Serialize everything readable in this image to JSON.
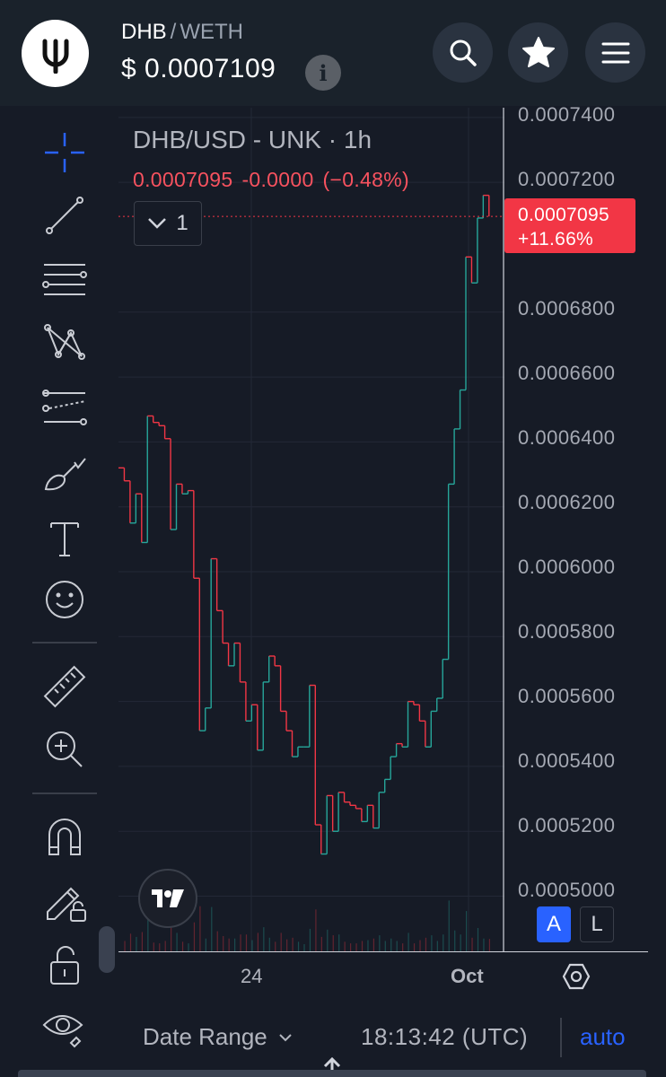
{
  "header": {
    "pair_base": "DHB",
    "pair_sep": "/",
    "pair_quote": "WETH",
    "price": "$ 0.0007109",
    "info_label": "i"
  },
  "chart": {
    "title": "DHB/USD - UNK · 1h",
    "last_value": "0.0007095",
    "change_abs": "-0.0000",
    "change_pct": "(−0.48%)",
    "collapse_count": "1",
    "price_tag_value": "0.0007095",
    "price_tag_change": "+11.66%",
    "scale_auto_label": "A",
    "scale_log_label": "L"
  },
  "footer": {
    "date_range_label": "Date Range",
    "clock": "18:13:42 (UTC)",
    "auto_label": "auto"
  },
  "colors": {
    "up": "#26a69a",
    "down": "#f23645",
    "accent": "#2962ff",
    "background": "#161b26"
  },
  "chart_data": {
    "type": "candlestick",
    "y_ticks": [
      "0.0007400",
      "0.0007200",
      "0.0006800",
      "0.0006600",
      "0.0006400",
      "0.0006200",
      "0.0006000",
      "0.0005800",
      "0.0005600",
      "0.0005400",
      "0.0005200",
      "0.0005000"
    ],
    "x_ticks": [
      "24",
      "Oct"
    ],
    "ylim": [
      0.000483,
      0.000743
    ],
    "last_price_line": 0.0007095,
    "close_series": [
      0.000632,
      0.000628,
      0.000615,
      0.000624,
      0.000609,
      0.000648,
      0.000646,
      0.000645,
      0.000641,
      0.000613,
      0.000627,
      0.000624,
      0.000625,
      0.000598,
      0.000551,
      0.000558,
      0.000604,
      0.000588,
      0.000578,
      0.000571,
      0.000578,
      0.000566,
      0.000554,
      0.000559,
      0.000545,
      0.000566,
      0.000574,
      0.000571,
      0.000557,
      0.000551,
      0.000543,
      0.000546,
      0.000546,
      0.000565,
      0.000522,
      0.000513,
      0.000531,
      0.00052,
      0.000532,
      0.000529,
      0.000528,
      0.000527,
      0.000523,
      0.000528,
      0.000521,
      0.000532,
      0.000536,
      0.000543,
      0.000547,
      0.000546,
      0.00056,
      0.000559,
      0.000554,
      0.000546,
      0.000557,
      0.000561,
      0.000573,
      0.000627,
      0.000644,
      0.000656,
      0.000697,
      0.000689,
      0.000709,
      0.000716,
      0.0007095
    ]
  }
}
